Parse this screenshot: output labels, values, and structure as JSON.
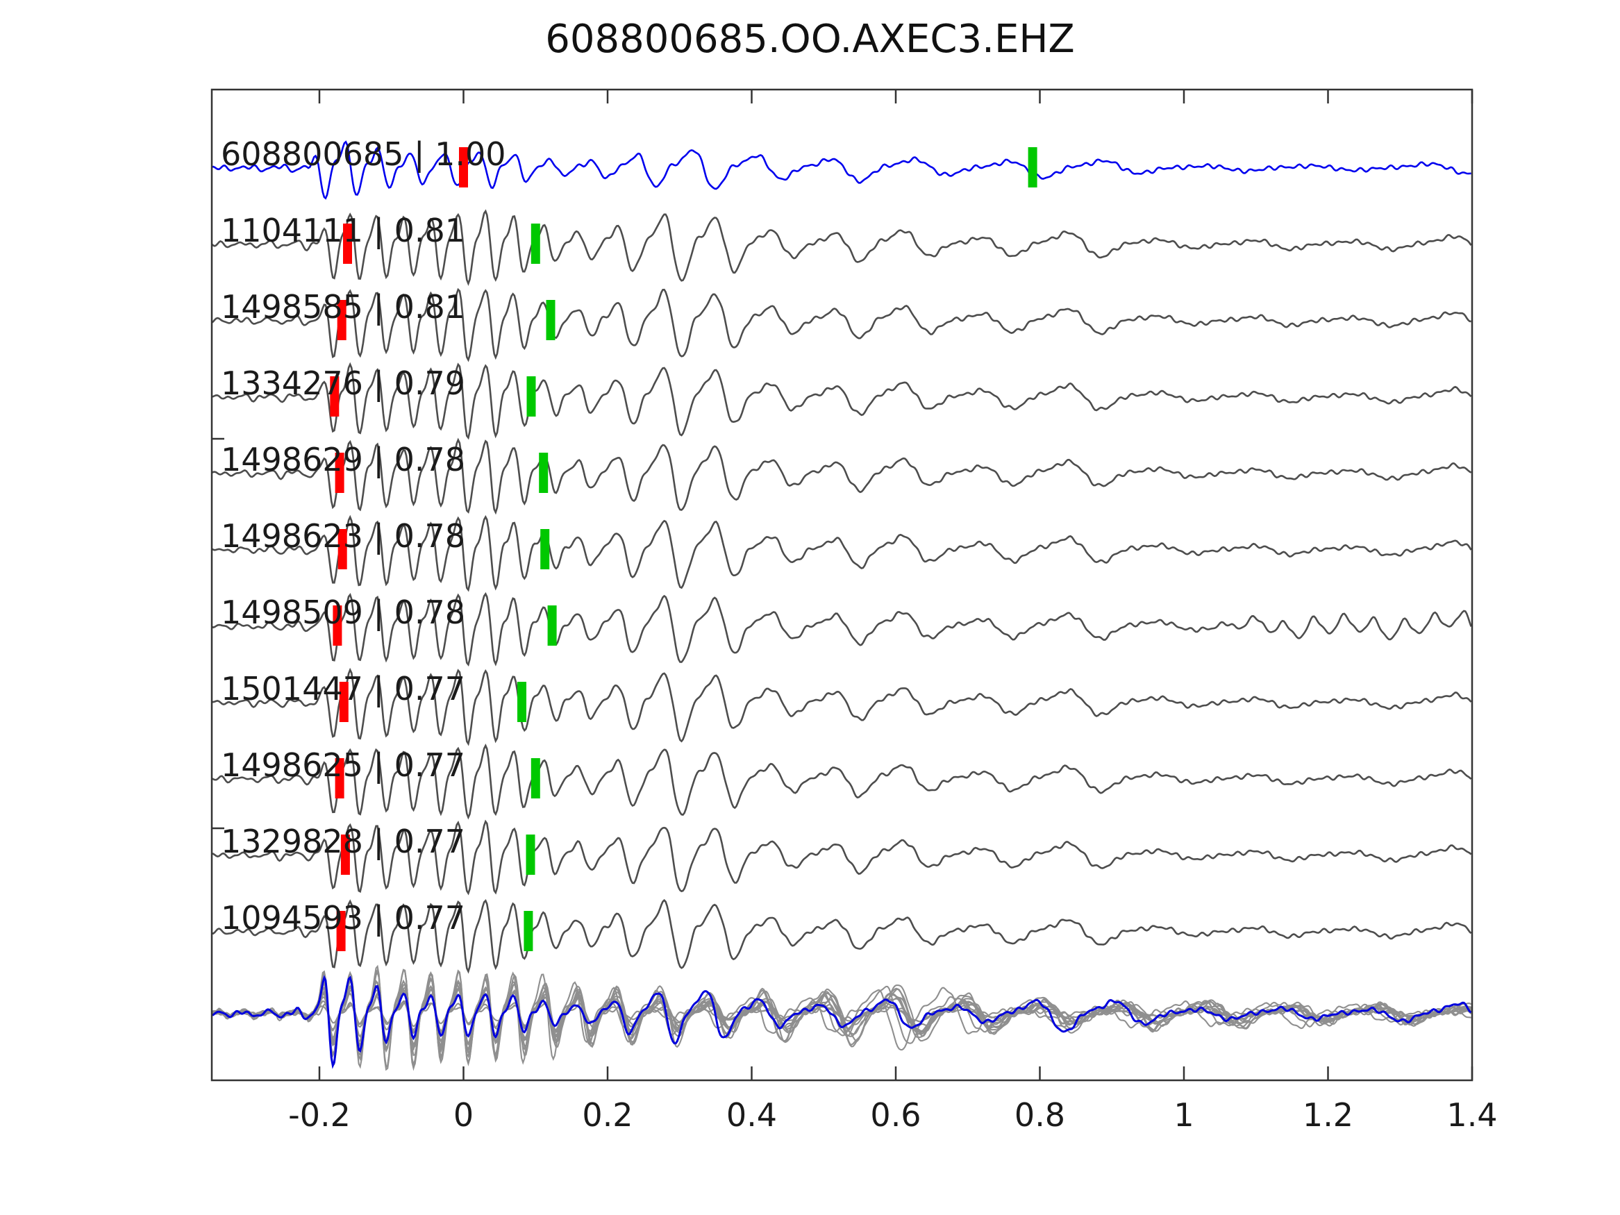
{
  "title": "608800685.OO.AXEC3.EHZ",
  "chart_data": {
    "type": "line",
    "title": "608800685.OO.AXEC3.EHZ",
    "subtitle": "",
    "xlabel": "",
    "ylabel": "",
    "grid": false,
    "legend_position": "none",
    "xlim": [
      -0.349,
      1.4
    ],
    "x_ticks": [
      -0.2,
      0,
      0.2,
      0.4,
      0.6,
      0.8,
      1,
      1.2,
      1.4
    ],
    "x_tick_labels": [
      "-0.2",
      "0",
      "0.2",
      "0.4",
      "0.6",
      "0.8",
      "1",
      "1.2",
      "1.4"
    ],
    "description": "Stacked aligned seismic waveform traces (template correlation plot). Top blue trace is the master event, gray traces are correlated detections, bottom panel is the overlay stack of all detections with the stack trace in blue. Red bars are reference picks, green bars are secondary picks.",
    "traces": [
      {
        "id": "608800685",
        "correlation": "1.00",
        "label": "608800685 | 1.00",
        "kind": "master",
        "red_pick": 0.0,
        "green_pick": 0.79,
        "late_coda": false
      },
      {
        "id": "1104111",
        "correlation": "0.81",
        "label": "1104111 | 0.81",
        "kind": "template",
        "red_pick": -0.161,
        "green_pick": 0.1,
        "late_coda": false
      },
      {
        "id": "1498585",
        "correlation": "0.81",
        "label": "1498585 | 0.81",
        "kind": "template",
        "red_pick": -0.169,
        "green_pick": 0.121,
        "late_coda": false
      },
      {
        "id": "1334276",
        "correlation": "0.79",
        "label": "1334276 | 0.79",
        "kind": "template",
        "red_pick": -0.179,
        "green_pick": 0.094,
        "late_coda": false
      },
      {
        "id": "1498629",
        "correlation": "0.78",
        "label": "1498629 | 0.78",
        "kind": "template",
        "red_pick": -0.172,
        "green_pick": 0.111,
        "late_coda": false
      },
      {
        "id": "1498623",
        "correlation": "0.78",
        "label": "1498623 | 0.78",
        "kind": "template",
        "red_pick": -0.168,
        "green_pick": 0.113,
        "late_coda": false
      },
      {
        "id": "1498509",
        "correlation": "0.78",
        "label": "1498509 | 0.78",
        "kind": "template",
        "red_pick": -0.175,
        "green_pick": 0.123,
        "late_coda": true
      },
      {
        "id": "1501447",
        "correlation": "0.77",
        "label": "1501447 | 0.77",
        "kind": "template",
        "red_pick": -0.166,
        "green_pick": 0.081,
        "late_coda": false
      },
      {
        "id": "1498625",
        "correlation": "0.77",
        "label": "1498625 | 0.77",
        "kind": "template",
        "red_pick": -0.172,
        "green_pick": 0.1,
        "late_coda": false
      },
      {
        "id": "1329828",
        "correlation": "0.77",
        "label": "1329828 | 0.77",
        "kind": "template",
        "red_pick": -0.164,
        "green_pick": 0.093,
        "late_coda": false
      },
      {
        "id": "1094593",
        "correlation": "0.77",
        "label": "1094593 | 0.77",
        "kind": "template",
        "red_pick": -0.17,
        "green_pick": 0.09,
        "late_coda": false
      }
    ],
    "stack": {
      "n_members": 12,
      "has_blue_overlay": true
    },
    "colors": {
      "master": "#0000ee",
      "template": "#4d4d4d",
      "stack_member": "#8f8f8f",
      "stack_overlay": "#0000dd",
      "red_marker": "#ff0000",
      "green_marker": "#00c800",
      "axis": "#333333",
      "text": "#1a1a1a"
    },
    "synth": {
      "envelopes": {
        "master": [
          [
            -0.35,
            3
          ],
          [
            -0.215,
            3
          ],
          [
            -0.19,
            35
          ],
          [
            0.0,
            42
          ],
          [
            0.15,
            30
          ],
          [
            0.3,
            22
          ],
          [
            0.45,
            25
          ],
          [
            0.55,
            30
          ],
          [
            0.65,
            25
          ],
          [
            0.8,
            12
          ],
          [
            0.95,
            8
          ],
          [
            1.4,
            6
          ]
        ],
        "template": [
          [
            -0.35,
            4
          ],
          [
            -0.205,
            4
          ],
          [
            -0.18,
            40
          ],
          [
            -0.08,
            70
          ],
          [
            0.0,
            85
          ],
          [
            0.1,
            70
          ],
          [
            0.2,
            48
          ],
          [
            0.35,
            34
          ],
          [
            0.5,
            30
          ],
          [
            0.58,
            44
          ],
          [
            0.7,
            26
          ],
          [
            0.85,
            14
          ],
          [
            1.0,
            11
          ],
          [
            1.2,
            11
          ],
          [
            1.4,
            10
          ]
        ],
        "stack": [
          [
            -0.35,
            5
          ],
          [
            -0.21,
            5
          ],
          [
            -0.19,
            60
          ],
          [
            0.05,
            52
          ],
          [
            0.2,
            38
          ],
          [
            0.35,
            30
          ],
          [
            0.5,
            28
          ],
          [
            0.6,
            40
          ],
          [
            0.75,
            22
          ],
          [
            0.95,
            18
          ],
          [
            1.1,
            15
          ],
          [
            1.4,
            13
          ]
        ]
      },
      "freqs": {
        "master": [
          [
            -0.35,
            24
          ],
          [
            0.1,
            20
          ],
          [
            0.3,
            12
          ],
          [
            0.6,
            8
          ],
          [
            1.4,
            6
          ]
        ],
        "template": [
          [
            -0.35,
            28
          ],
          [
            0.05,
            26
          ],
          [
            0.25,
            15
          ],
          [
            0.5,
            11
          ],
          [
            0.8,
            8
          ],
          [
            1.4,
            7
          ]
        ],
        "stack": [
          [
            -0.35,
            28
          ],
          [
            0.05,
            26
          ],
          [
            0.25,
            16
          ],
          [
            0.5,
            11
          ],
          [
            0.8,
            9
          ],
          [
            1.4,
            8
          ]
        ]
      }
    }
  }
}
